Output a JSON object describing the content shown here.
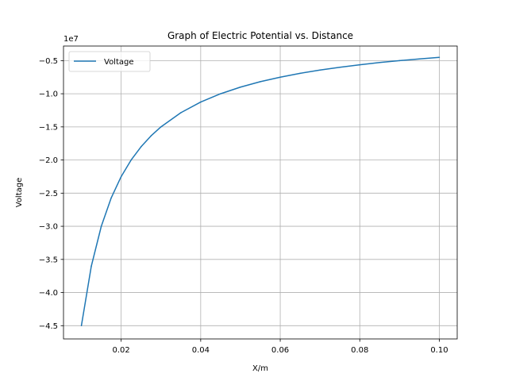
{
  "chart_data": {
    "type": "line",
    "title": "Graph of Electric Potential vs. Distance",
    "xlabel": "X/m",
    "ylabel": "Voltage",
    "y_offset_label": "1e7",
    "xlim": [
      0.0055,
      0.1045
    ],
    "ylim": [
      -47000000,
      -2800000
    ],
    "grid": true,
    "legend_position": "upper-left",
    "x_ticks": [
      0.02,
      0.04,
      0.06,
      0.08,
      0.1
    ],
    "x_tick_labels": [
      "0.02",
      "0.04",
      "0.06",
      "0.08",
      "0.10"
    ],
    "y_ticks": [
      -5000000,
      -10000000,
      -15000000,
      -20000000,
      -25000000,
      -30000000,
      -35000000,
      -40000000,
      -45000000
    ],
    "y_tick_labels": [
      "−0.5",
      "−1.0",
      "−1.5",
      "−2.0",
      "−2.5",
      "−3.0",
      "−3.5",
      "−4.0",
      "−4.5"
    ],
    "series": [
      {
        "name": "Voltage",
        "color": "#1f77b4",
        "x": [
          0.01,
          0.0125,
          0.015,
          0.0175,
          0.02,
          0.0225,
          0.025,
          0.0275,
          0.03,
          0.035,
          0.04,
          0.045,
          0.05,
          0.055,
          0.06,
          0.065,
          0.07,
          0.075,
          0.08,
          0.085,
          0.09,
          0.095,
          0.1
        ],
        "y": [
          -45000000,
          -36000000,
          -30000000,
          -25710000,
          -22500000,
          -20000000,
          -18000000,
          -16360000,
          -15000000,
          -12860000,
          -11250000,
          -10000000,
          -9000000,
          -8180000,
          -7500000,
          -6920000,
          -6430000,
          -6000000,
          -5630000,
          -5290000,
          -5000000,
          -4740000,
          -4500000
        ]
      }
    ]
  }
}
